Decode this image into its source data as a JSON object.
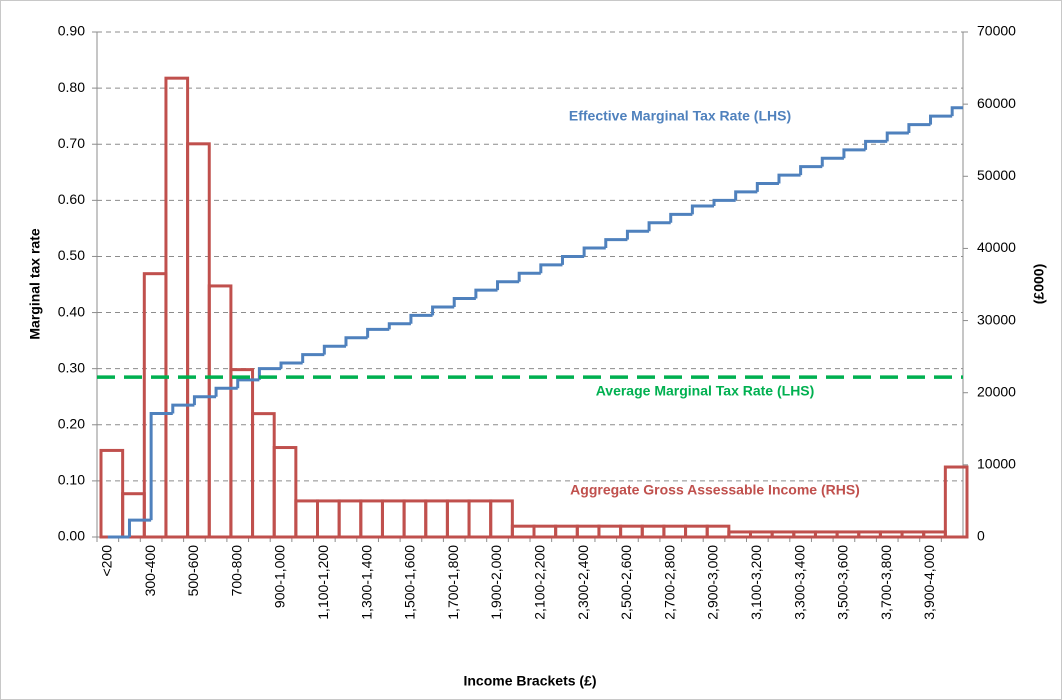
{
  "chart_data": {
    "type": "combo",
    "categories": [
      "<200",
      null,
      "300-400",
      null,
      "500-600",
      null,
      "700-800",
      null,
      "900-1,000",
      null,
      "1,100-1,200",
      null,
      "1,300-1,400",
      null,
      "1,500-1,600",
      null,
      "1,700-1,800",
      null,
      "1,900-2,000",
      null,
      "2,100-2,200",
      null,
      "2,300-2,400",
      null,
      "2,500-2,600",
      null,
      "2,700-2,800",
      null,
      "2,900-3,000",
      null,
      "3,100-3,200",
      null,
      "3,300-3,400",
      null,
      "3,500-3,600",
      null,
      "3,700-3,800",
      null,
      "3,900-4,000",
      null
    ],
    "x_label": "Income Brackets (£)",
    "y_label": "Marginal tax rate",
    "y2_label": "(£000)",
    "ylim": [
      0,
      0.9
    ],
    "yticks": [
      {
        "value": 0,
        "label": "0.00"
      },
      {
        "value": 0.1,
        "label": "0.10"
      },
      {
        "value": 0.2,
        "label": "0.20"
      },
      {
        "value": 0.3,
        "label": "0.30"
      },
      {
        "value": 0.4,
        "label": "0.40"
      },
      {
        "value": 0.5,
        "label": "0.50"
      },
      {
        "value": 0.6,
        "label": "0.60"
      },
      {
        "value": 0.7,
        "label": "0.70"
      },
      {
        "value": 0.8,
        "label": "0.80"
      },
      {
        "value": 0.9,
        "label": "0.90"
      }
    ],
    "y2lim": [
      0,
      70000
    ],
    "y2ticks": [
      0,
      10000,
      20000,
      30000,
      40000,
      50000,
      60000,
      70000
    ],
    "grid": true,
    "series": [
      {
        "name": "Aggregate Gross Assessable Income (RHS)",
        "type": "bar",
        "axis": "y2",
        "color": "#c0504d",
        "values": [
          12000,
          6000,
          36500,
          63600,
          54500,
          34800,
          23200,
          17100,
          12400,
          5000,
          5000,
          5000,
          5000,
          5000,
          5000,
          5000,
          5000,
          5000,
          5000,
          1500,
          1500,
          1500,
          1500,
          1500,
          1500,
          1500,
          1500,
          1500,
          1500,
          700,
          700,
          700,
          700,
          700,
          700,
          700,
          700,
          700,
          700,
          9700
        ]
      },
      {
        "name": "Effective Marginal Tax Rate (LHS)",
        "type": "step",
        "color": "#4f81bd",
        "values": [
          0,
          0.03,
          0.22,
          0.235,
          0.25,
          0.265,
          0.28,
          0.3,
          0.31,
          0.325,
          0.34,
          0.355,
          0.37,
          0.38,
          0.395,
          0.41,
          0.425,
          0.44,
          0.455,
          0.47,
          0.485,
          0.5,
          0.515,
          0.53,
          0.545,
          0.56,
          0.575,
          0.59,
          0.6,
          0.615,
          0.63,
          0.645,
          0.66,
          0.675,
          0.69,
          0.705,
          0.72,
          0.735,
          0.75,
          0.765
        ]
      },
      {
        "name": "Average Marginal Tax Rate (LHS)",
        "type": "hline",
        "color": "#00b050",
        "value": 0.285
      }
    ]
  }
}
